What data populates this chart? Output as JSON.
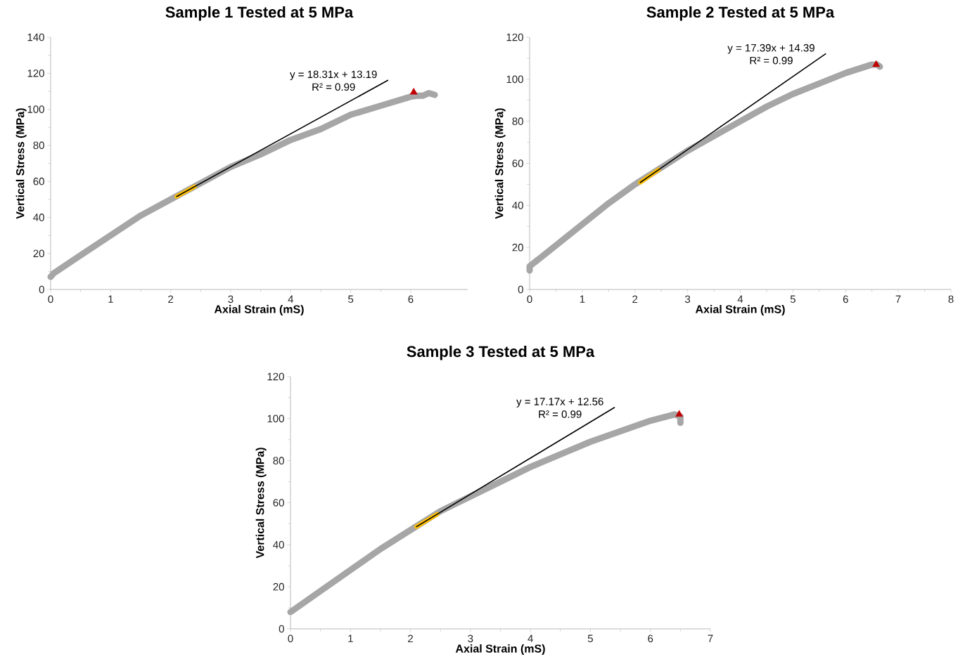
{
  "chart_data": [
    {
      "type": "line",
      "title": "Sample 1 Tested at 5 MPa",
      "xlabel": "Axial Strain (mS)",
      "ylabel": "Vertical Stress (MPa)",
      "xlim": [
        0,
        6.95
      ],
      "xticks": [
        0,
        1,
        2,
        3,
        4,
        5,
        6
      ],
      "ylim": [
        0,
        140
      ],
      "yticks": [
        0,
        20,
        40,
        60,
        80,
        100,
        120,
        140
      ],
      "series": [
        {
          "color": "#a6a6a6",
          "marker": "none",
          "x": [
            0,
            0.05,
            0.5,
            1,
            1.5,
            2,
            2.5,
            3,
            3.5,
            4,
            4.5,
            5,
            5.5,
            6,
            6.1,
            6.2,
            6.3,
            6.4
          ],
          "values": [
            7,
            9,
            19,
            30,
            41,
            50,
            59,
            68,
            75,
            83,
            89,
            97,
            102,
            107,
            107.5,
            107.5,
            109,
            108
          ]
        },
        {
          "color": "#ffc000",
          "marker": "none",
          "x": [
            2.1,
            2.4
          ],
          "values": [
            51.6,
            57.1
          ]
        },
        {
          "color": "#000000",
          "marker": "none",
          "x": [
            2.1,
            5.62
          ],
          "values": [
            51.6,
            116.1
          ]
        },
        {
          "type": "scatter",
          "color": "#c00000",
          "marker": "triangle",
          "x": [
            6.05
          ],
          "values": [
            109.5
          ]
        }
      ],
      "annotations": [
        "y = 18.31x + 13.19",
        "R² = 0.99"
      ]
    },
    {
      "type": "line",
      "title": "Sample 2 Tested at 5 MPa",
      "xlabel": "Axial Strain (mS)",
      "ylabel": "Vertical Stress (MPa)",
      "xlim": [
        0,
        8
      ],
      "xticks": [
        0,
        1,
        2,
        3,
        4,
        5,
        6,
        7,
        8
      ],
      "ylim": [
        0,
        120
      ],
      "yticks": [
        0,
        20,
        40,
        60,
        80,
        100,
        120
      ],
      "series": [
        {
          "color": "#a6a6a6",
          "marker": "none",
          "x": [
            0,
            0,
            0.5,
            1,
            1.5,
            2,
            2.5,
            3,
            3.5,
            4,
            4.5,
            5,
            5.5,
            6,
            6.5,
            6.6,
            6.65
          ],
          "values": [
            9,
            11,
            21,
            31,
            41,
            50,
            58,
            66,
            73,
            80,
            87,
            93,
            98,
            103,
            107,
            107,
            106
          ]
        },
        {
          "color": "#ffc000",
          "marker": "none",
          "x": [
            2.1,
            2.45
          ],
          "values": [
            50.9,
            57.0
          ]
        },
        {
          "color": "#000000",
          "marker": "none",
          "x": [
            2.1,
            5.62
          ],
          "values": [
            50.9,
            112.1
          ]
        },
        {
          "type": "scatter",
          "color": "#c00000",
          "marker": "triangle",
          "x": [
            6.58
          ],
          "values": [
            107
          ]
        }
      ],
      "annotations": [
        "y = 17.39x + 14.39",
        "R² = 0.99"
      ]
    },
    {
      "type": "line",
      "title": "Sample 3 Tested at 5 MPa",
      "xlabel": "Axial Strain (mS)",
      "ylabel": "Vertical Stress (MPa)",
      "xlim": [
        0,
        7
      ],
      "xticks": [
        0,
        1,
        2,
        3,
        4,
        5,
        6,
        7
      ],
      "ylim": [
        0,
        120
      ],
      "yticks": [
        0,
        20,
        40,
        60,
        80,
        100,
        120
      ],
      "series": [
        {
          "color": "#a6a6a6",
          "marker": "none",
          "x": [
            0,
            0.05,
            0.5,
            1,
            1.5,
            2,
            2.5,
            3,
            3.5,
            4,
            4.5,
            5,
            5.5,
            6,
            6.4,
            6.5,
            6.5
          ],
          "values": [
            8,
            9,
            18,
            28,
            38,
            47,
            56,
            63,
            70,
            77,
            83,
            89,
            94,
            99,
            102,
            101,
            98
          ]
        },
        {
          "color": "#ffc000",
          "marker": "none",
          "x": [
            2.1,
            2.45
          ],
          "values": [
            48.6,
            54.6
          ]
        },
        {
          "color": "#000000",
          "marker": "none",
          "x": [
            2.1,
            5.4
          ],
          "values": [
            48.6,
            105.3
          ]
        },
        {
          "type": "scatter",
          "color": "#c00000",
          "marker": "triangle",
          "x": [
            6.48
          ],
          "values": [
            102
          ]
        }
      ],
      "annotations": [
        "y = 17.17x + 12.56",
        "R² = 0.99"
      ]
    }
  ]
}
